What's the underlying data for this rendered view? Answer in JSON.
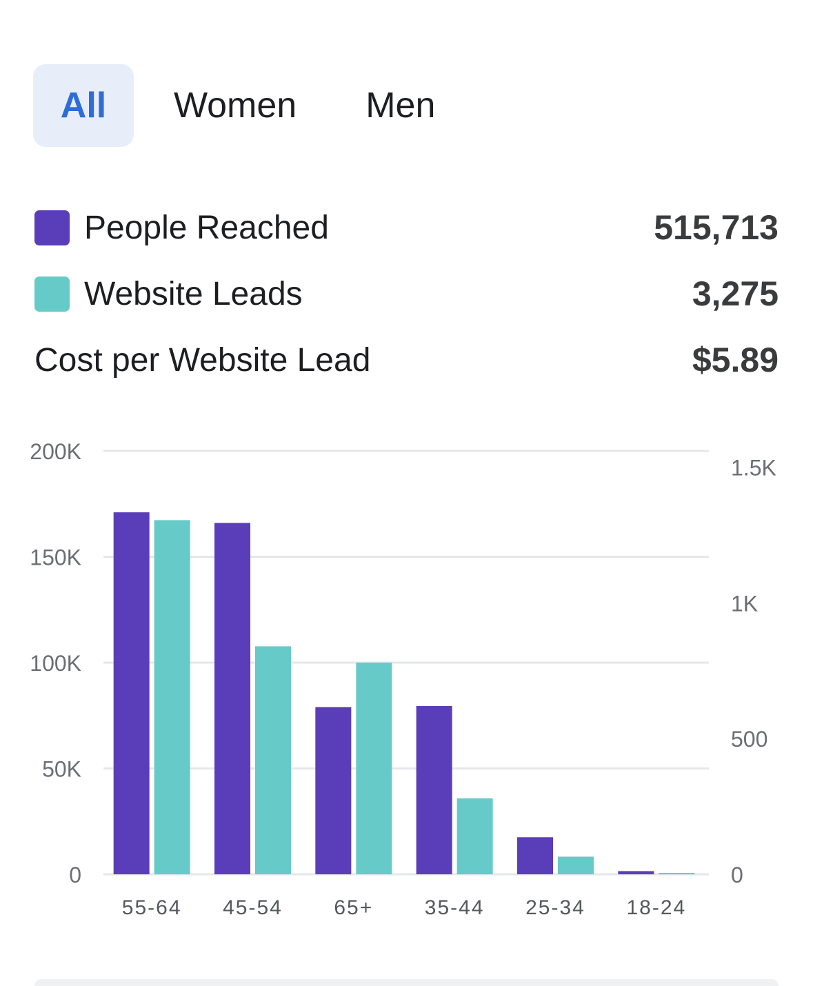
{
  "tabs": [
    {
      "label": "All",
      "active": true
    },
    {
      "label": "Women",
      "active": false
    },
    {
      "label": "Men",
      "active": false
    }
  ],
  "metrics": {
    "people_reached": {
      "label": "People Reached",
      "value": "515,713",
      "color": "#5a3db8"
    },
    "website_leads": {
      "label": "Website Leads",
      "value": "3,275",
      "color": "#66cac9"
    },
    "cost_per_lead": {
      "label": "Cost per Website Lead",
      "value": "$5.89"
    }
  },
  "chart_data": {
    "type": "bar",
    "categories": [
      "55-64",
      "45-54",
      "65+",
      "35-44",
      "25-34",
      "18-24"
    ],
    "series": [
      {
        "name": "People Reached",
        "axis": "left",
        "color": "#5a3db8",
        "values": [
          171000,
          166000,
          79000,
          79500,
          17500,
          1500
        ]
      },
      {
        "name": "Website Leads",
        "axis": "right",
        "color": "#66cac9",
        "values": [
          1305,
          840,
          780,
          280,
          65,
          5
        ]
      }
    ],
    "y_left": {
      "ticks": [
        "0",
        "50K",
        "100K",
        "150K",
        "200K"
      ],
      "tick_values": [
        0,
        50000,
        100000,
        150000,
        200000
      ],
      "ylim": [
        0,
        200000
      ]
    },
    "y_right": {
      "ticks": [
        "0",
        "500",
        "1K",
        "1.5K"
      ],
      "tick_values": [
        0,
        500,
        1000,
        1500
      ],
      "ylim": [
        0,
        1560
      ]
    },
    "grid": true
  }
}
